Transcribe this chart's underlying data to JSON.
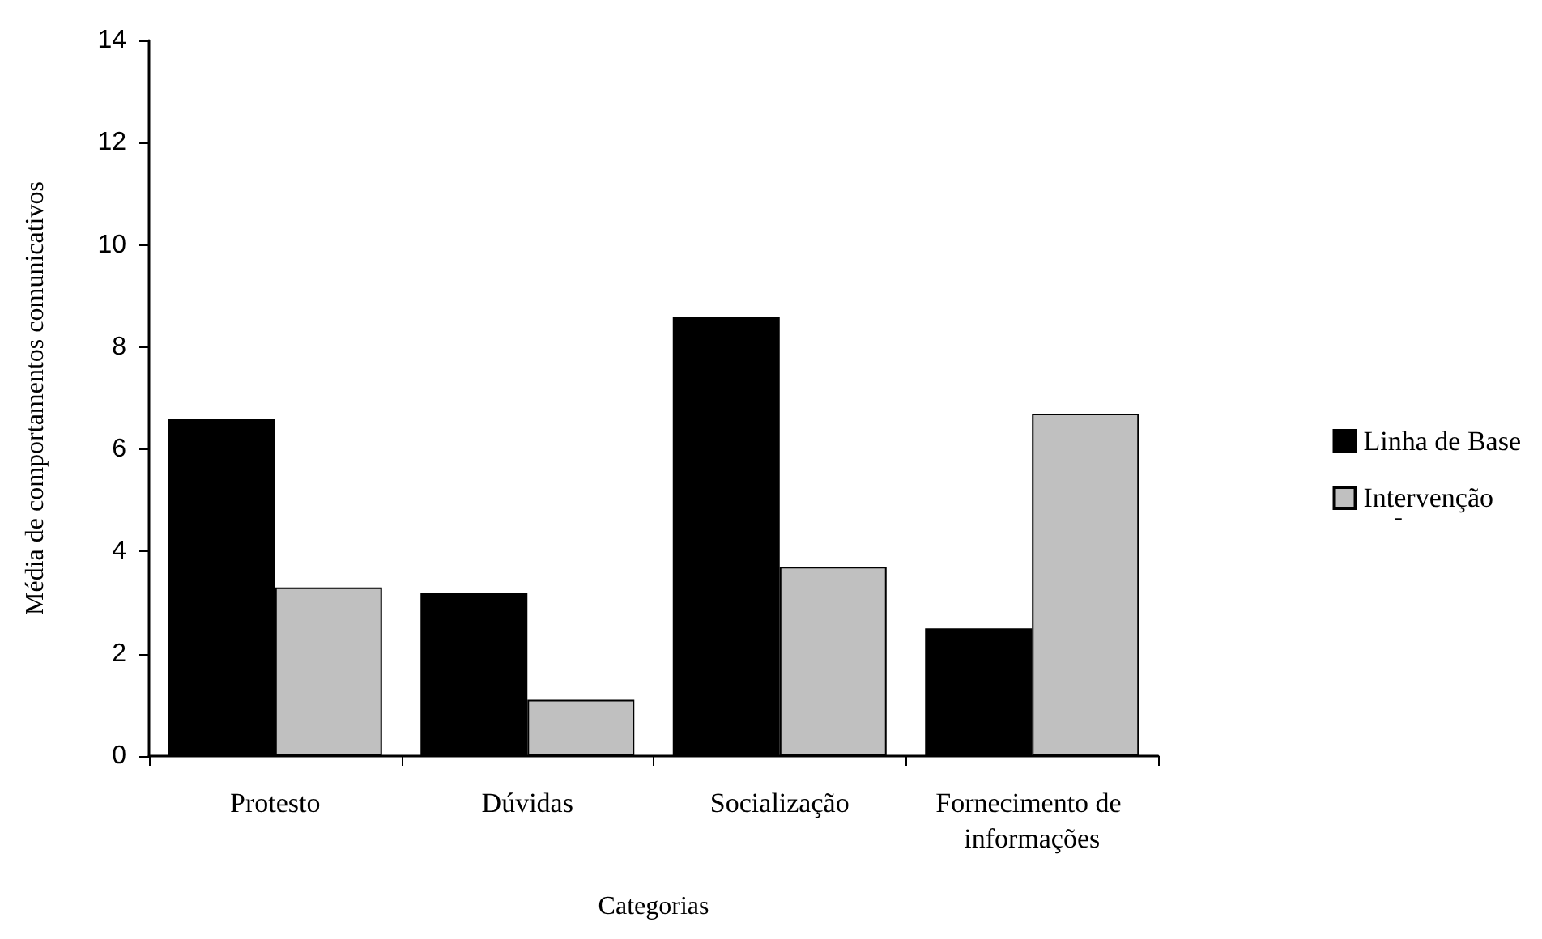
{
  "chart_data": {
    "type": "bar",
    "xlabel": "Categorias",
    "ylabel": "Média de comportamentos comunicativos",
    "categories": [
      "Protesto",
      "Dúvidas",
      "Socialização",
      "Fornecimento de informações"
    ],
    "series": [
      {
        "name": "Linha de Base",
        "color": "#000000",
        "values": [
          6.6,
          3.2,
          8.6,
          2.5
        ]
      },
      {
        "name": "Intervenção",
        "color": "#c0c0c0",
        "values": [
          3.3,
          1.1,
          3.7,
          6.7
        ]
      }
    ],
    "ylim": [
      0,
      14
    ],
    "yticks": [
      0,
      2,
      4,
      6,
      8,
      10,
      12,
      14
    ],
    "grid": false,
    "legend": "right",
    "annotations": [
      "-"
    ]
  }
}
